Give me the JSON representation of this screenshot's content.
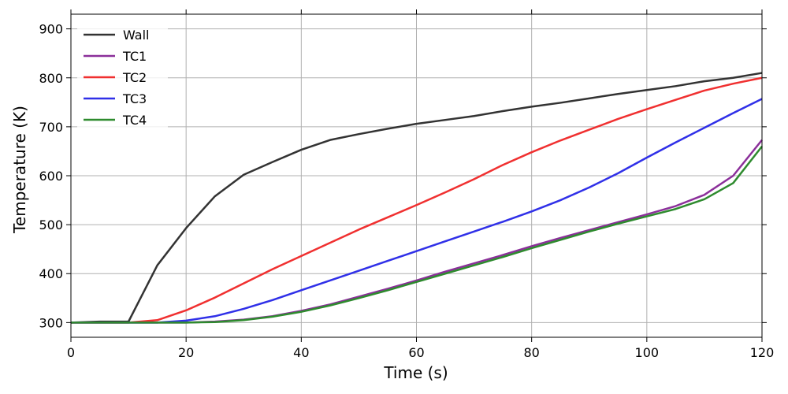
{
  "chart_data": {
    "type": "line",
    "title": "",
    "xlabel": "Time (s)",
    "ylabel": "Temperature (K)",
    "xlim": [
      0,
      120
    ],
    "ylim": [
      270,
      930
    ],
    "xticks": [
      0,
      20,
      40,
      60,
      80,
      100,
      120
    ],
    "yticks": [
      300,
      400,
      500,
      600,
      700,
      800,
      900
    ],
    "grid": true,
    "legend_position": "top-left",
    "series": [
      {
        "name": "Wall",
        "color": "#333333",
        "x": [
          0,
          5,
          10,
          15,
          20,
          25,
          30,
          35,
          40,
          45,
          50,
          55,
          60,
          65,
          70,
          75,
          80,
          85,
          90,
          95,
          100,
          105,
          110,
          115,
          120
        ],
        "y": [
          300,
          302,
          302,
          417,
          493,
          558,
          602,
          628,
          653,
          673,
          685,
          696,
          706,
          714,
          722,
          732,
          741,
          749,
          758,
          767,
          775,
          783,
          793,
          800,
          810
        ]
      },
      {
        "name": "TC1",
        "color": "#8B2F9A",
        "x": [
          0,
          5,
          10,
          15,
          20,
          25,
          30,
          35,
          40,
          45,
          50,
          55,
          60,
          65,
          70,
          75,
          80,
          85,
          90,
          95,
          100,
          105,
          110,
          115,
          120
        ],
        "y": [
          300,
          300,
          300,
          300,
          300,
          302,
          306,
          313,
          324,
          337,
          353,
          369,
          386,
          404,
          421,
          438,
          456,
          473,
          489,
          505,
          521,
          538,
          561,
          600,
          673
        ]
      },
      {
        "name": "TC2",
        "color": "#F03030",
        "x": [
          0,
          5,
          10,
          15,
          20,
          25,
          30,
          35,
          40,
          45,
          50,
          55,
          60,
          65,
          70,
          75,
          80,
          85,
          90,
          95,
          100,
          105,
          110,
          115,
          120
        ],
        "y": [
          300,
          300,
          300,
          305,
          325,
          351,
          380,
          409,
          436,
          463,
          490,
          515,
          540,
          566,
          593,
          622,
          648,
          672,
          694,
          716,
          736,
          755,
          774,
          788,
          800
        ]
      },
      {
        "name": "TC3",
        "color": "#3030E8",
        "x": [
          0,
          5,
          10,
          15,
          20,
          25,
          30,
          35,
          40,
          45,
          50,
          55,
          60,
          65,
          70,
          75,
          80,
          85,
          90,
          95,
          100,
          105,
          110,
          115,
          120
        ],
        "y": [
          300,
          300,
          300,
          300,
          304,
          313,
          328,
          346,
          366,
          386,
          406,
          426,
          446,
          466,
          486,
          506,
          527,
          550,
          576,
          605,
          637,
          668,
          698,
          728,
          757
        ]
      },
      {
        "name": "TC4",
        "color": "#2E8B2E",
        "x": [
          0,
          5,
          10,
          15,
          20,
          25,
          30,
          35,
          40,
          45,
          50,
          55,
          60,
          65,
          70,
          75,
          80,
          85,
          90,
          95,
          100,
          105,
          110,
          115,
          120
        ],
        "y": [
          300,
          300,
          300,
          300,
          300,
          301,
          305,
          312,
          322,
          335,
          350,
          366,
          383,
          400,
          417,
          434,
          452,
          469,
          486,
          502,
          517,
          532,
          552,
          585,
          660
        ]
      }
    ]
  }
}
